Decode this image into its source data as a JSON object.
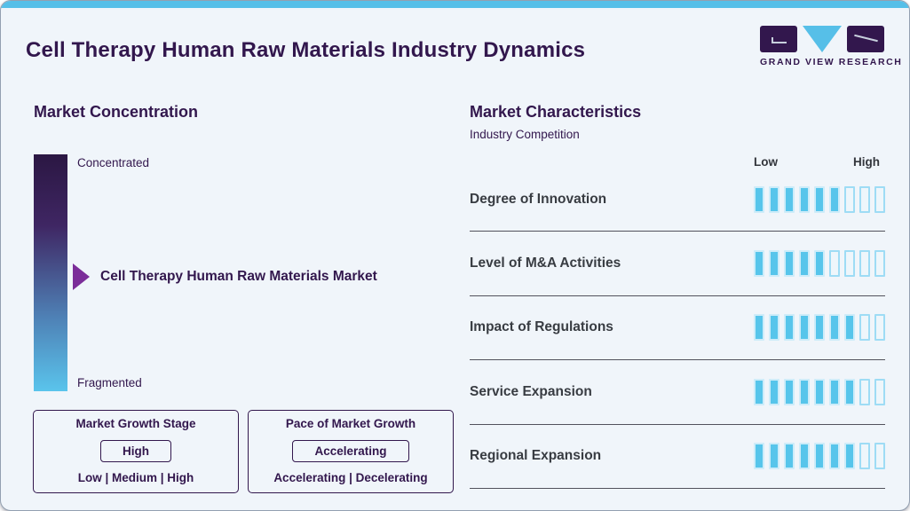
{
  "header": {
    "title": "Cell Therapy Human Raw Materials Industry Dynamics",
    "logo_text": "GRAND VIEW RESEARCH"
  },
  "market_concentration": {
    "heading": "Market Concentration",
    "scale_top_label": "Concentrated",
    "scale_bottom_label": "Fragmented",
    "marker_label": "Cell Therapy Human Raw Materials Market",
    "marker_position_pct": 52
  },
  "growth_stage_box": {
    "title": "Market Growth Stage",
    "selected": "High",
    "options_line": "Low | Medium | High"
  },
  "pace_box": {
    "title": "Pace of Market Growth",
    "selected": "Accelerating",
    "options_line": "Accelerating | Decelerating"
  },
  "market_characteristics": {
    "heading": "Market Characteristics",
    "subheading": "Industry Competition",
    "scale_low_label": "Low",
    "scale_high_label": "High"
  },
  "chart_data": {
    "type": "bar",
    "title": "Market Characteristics - Industry Competition",
    "categories": [
      "Degree of Innovation",
      "Level of M&A Activities",
      "Impact of Regulations",
      "Service Expansion",
      "Regional Expansion"
    ],
    "values": [
      6,
      5,
      7,
      7,
      7
    ],
    "scale": {
      "segments": 9,
      "min_label": "Low",
      "max_label": "High"
    },
    "legend": "filled segments indicate level from Low to High"
  },
  "colors": {
    "accent_blue": "#56bfe8",
    "segment_blue": "#57c5eb",
    "dark_purple": "#32174d",
    "arrow_purple": "#7b2d99",
    "text_dark": "#383c42",
    "background": "#f0f5fa"
  }
}
